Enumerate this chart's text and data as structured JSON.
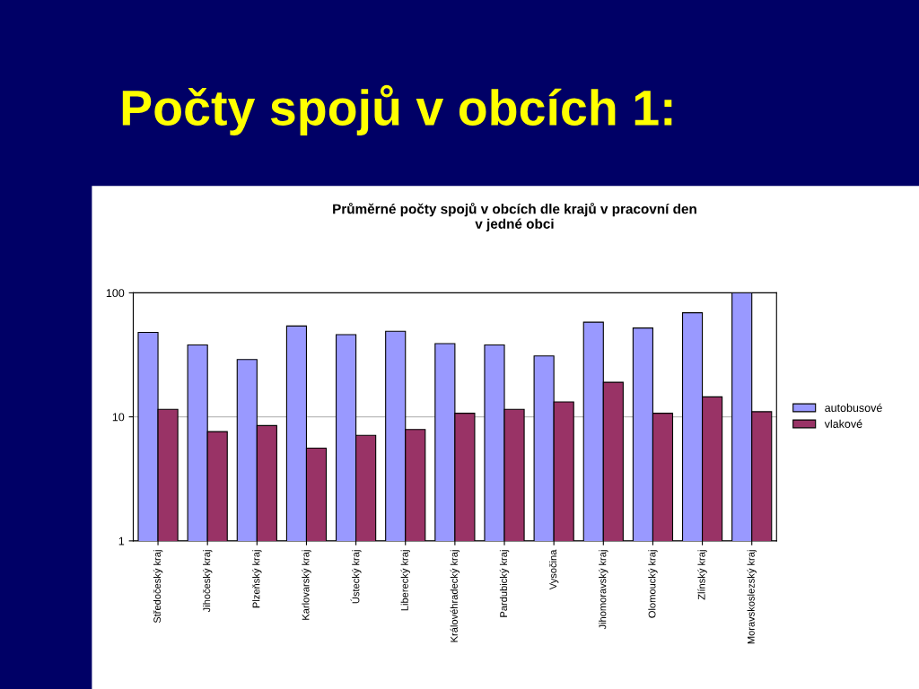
{
  "chart_data": {
    "type": "bar",
    "title": "Počty spojů v obcích 1:",
    "subtitle": "Průměrné počty spojů v obcích dle krajů v pracovní den\nv jedné obci",
    "categories": [
      "Středočeský kraj",
      "Jihočeský kraj",
      "Plzeňský kraj",
      "Karlovarský kraj",
      "Ústecký kraj",
      "Liberecký kraj",
      "Královéhradecký kraj",
      "Pardubický kraj",
      "Vysočina",
      "Jihomoravský kraj",
      "Olomoucký kraj",
      "Zlínský kraj",
      "Moravskoslezský kraj"
    ],
    "series": [
      {
        "name": "autobusové",
        "color": "#9999ff",
        "values": [
          48,
          38,
          29,
          54,
          46,
          49,
          39,
          38,
          31,
          58,
          52,
          69,
          100
        ]
      },
      {
        "name": "vlakové",
        "color": "#993366",
        "values": [
          11.5,
          7.6,
          8.5,
          5.6,
          7.1,
          7.9,
          10.7,
          11.5,
          13.2,
          19,
          10.7,
          14.5,
          11
        ]
      }
    ],
    "log": true,
    "ylim": [
      1,
      100
    ],
    "yticks": [
      1,
      10,
      100
    ],
    "grid": "y",
    "legend": "right"
  }
}
